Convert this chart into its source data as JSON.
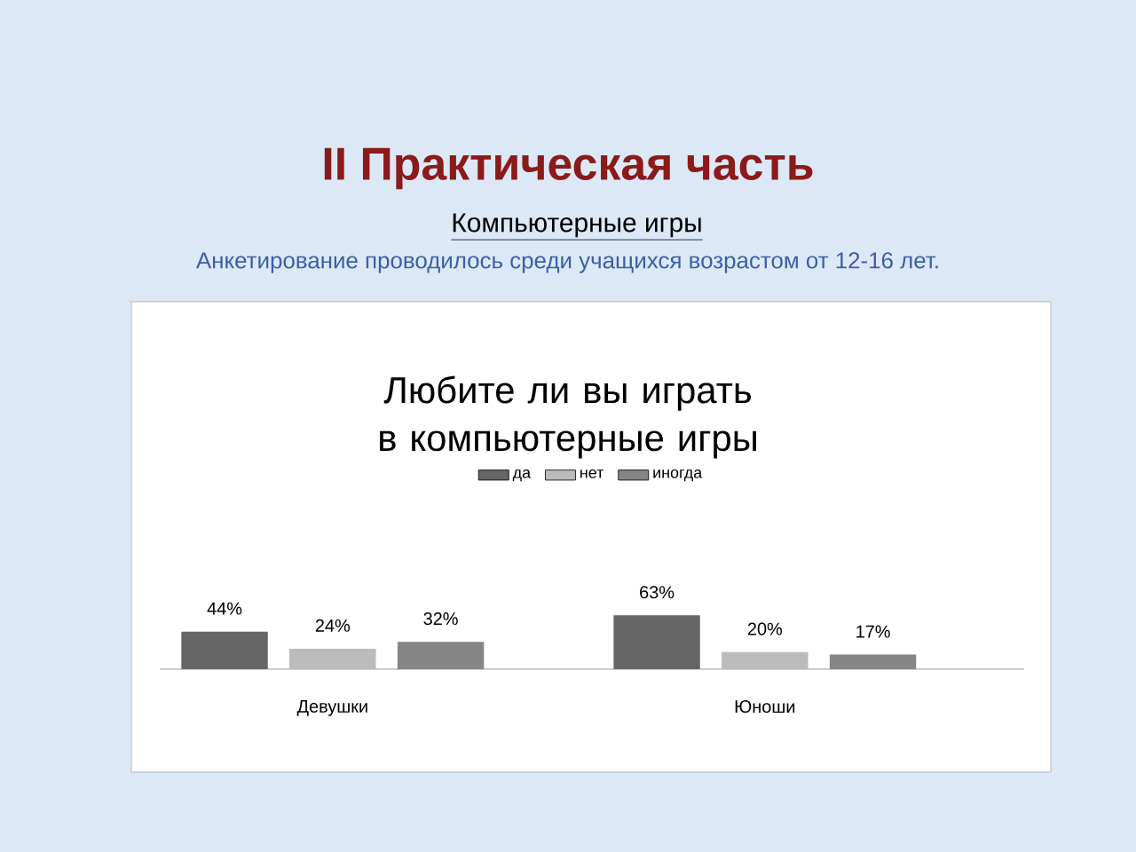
{
  "chart_data": {
    "type": "bar",
    "title": "Любите ли вы играть в компьютерные игры",
    "annotations": [
      "II Практическая часть",
      "Компьютерные игры",
      "Анкетирование проводилось среди учащихся возрастом от 12-16 лет."
    ],
    "categories": [
      "Девушки",
      "Юноши"
    ],
    "series": [
      {
        "name": "да",
        "color": "#666666",
        "values": [
          44,
          63
        ],
        "value_labels": [
          "44%",
          "63%"
        ]
      },
      {
        "name": "нет",
        "color": "#bbbbbb",
        "values": [
          24,
          20
        ],
        "value_labels": [
          "24%",
          "20%"
        ]
      },
      {
        "name": "иногда",
        "color": "#858585",
        "values": [
          32,
          17
        ],
        "value_labels": [
          "32%",
          "17%"
        ]
      }
    ],
    "legend": "top"
  }
}
